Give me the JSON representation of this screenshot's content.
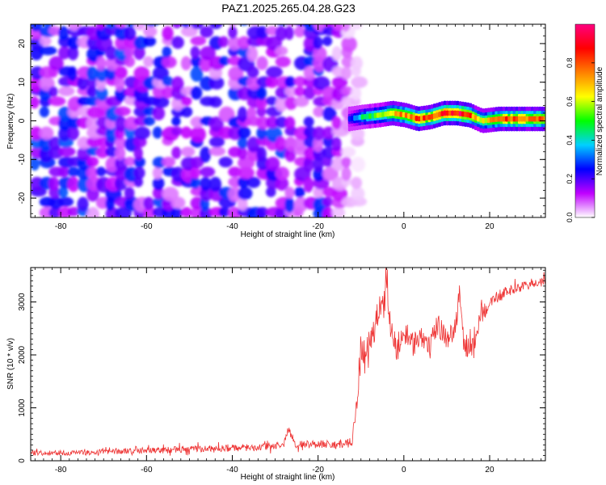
{
  "title": "PAZ1.2025.265.04.28.G23",
  "chart_data": [
    {
      "type": "heatmap",
      "xlabel": "Height of straight line (km)",
      "ylabel": "Frequency (Hz)",
      "xlim": [
        -87,
        33
      ],
      "ylim": [
        -25,
        25
      ],
      "xticks": [
        -80,
        -60,
        -40,
        -20,
        0,
        20
      ],
      "yticks": [
        -20,
        -10,
        0,
        10,
        20
      ],
      "colorbar": {
        "label": "Normalized spectral amplitude",
        "range": [
          0,
          1
        ],
        "ticks": [
          "0.0",
          "0.2",
          "0.4",
          "0.6",
          "0.8"
        ],
        "colors": [
          "#ffffff",
          "#c000ff",
          "#0000ff",
          "#00d0ff",
          "#00ff00",
          "#ffff00",
          "#ff8000",
          "#ff0000",
          "#ff0080"
        ]
      },
      "noise_region": {
        "x_range": [
          -87,
          -12
        ],
        "f_range": [
          -25,
          25
        ],
        "amplitude": [
          0.05,
          0.3
        ]
      },
      "signal_ridge": {
        "x": [
          -13,
          -10,
          -6,
          -3,
          0,
          3,
          6,
          9,
          12,
          15,
          18,
          22,
          26,
          30,
          33
        ],
        "f": [
          0.5,
          1.0,
          1.5,
          2.0,
          1.5,
          0.5,
          1.0,
          2.0,
          2.0,
          1.5,
          0.0,
          0.5,
          0.5,
          0.5,
          0.5
        ],
        "amplitude": [
          0.25,
          0.45,
          0.55,
          0.7,
          0.75,
          0.85,
          0.8,
          0.9,
          0.95,
          0.85,
          0.6,
          0.8,
          0.85,
          0.8,
          0.8
        ]
      }
    },
    {
      "type": "line",
      "xlabel": "Height of straight line (km)",
      "ylabel": "SNR (10 * v/v)",
      "xlim": [
        -87,
        33
      ],
      "ylim": [
        0,
        3650
      ],
      "xticks": [
        -80,
        -60,
        -40,
        -20,
        0,
        20
      ],
      "yticks": [
        0,
        1000,
        2000,
        3000
      ],
      "series": [
        {
          "color": "#ee3333",
          "x": [
            -87,
            -75,
            -62,
            -50,
            -40,
            -32,
            -28,
            -27,
            -25,
            -20,
            -14,
            -12,
            -11,
            -10,
            -9,
            -8,
            -7,
            -6,
            -5,
            -4,
            -3,
            -2,
            -1,
            0,
            2,
            4,
            6,
            8,
            10,
            12,
            13,
            14,
            16,
            17,
            18,
            19,
            20,
            22,
            24,
            26,
            28,
            30,
            33
          ],
          "y": [
            150,
            150,
            190,
            220,
            240,
            260,
            300,
            600,
            300,
            320,
            300,
            350,
            1100,
            2100,
            1900,
            2500,
            2300,
            2900,
            2800,
            3300,
            2500,
            2200,
            2000,
            2450,
            2200,
            2400,
            2100,
            2600,
            2300,
            2500,
            3200,
            2200,
            2100,
            2300,
            2900,
            2800,
            3000,
            3100,
            3200,
            3250,
            3300,
            3350,
            3400
          ],
          "noise_amplitude": [
            60,
            60,
            70,
            80,
            80,
            90,
            90,
            100,
            90,
            100,
            100,
            150,
            350,
            450,
            450,
            400,
            400,
            350,
            350,
            300,
            350,
            300,
            300,
            300,
            300,
            300,
            300,
            300,
            250,
            250,
            250,
            300,
            300,
            250,
            200,
            200,
            150,
            150,
            120,
            120,
            120,
            120,
            120
          ]
        }
      ]
    }
  ]
}
